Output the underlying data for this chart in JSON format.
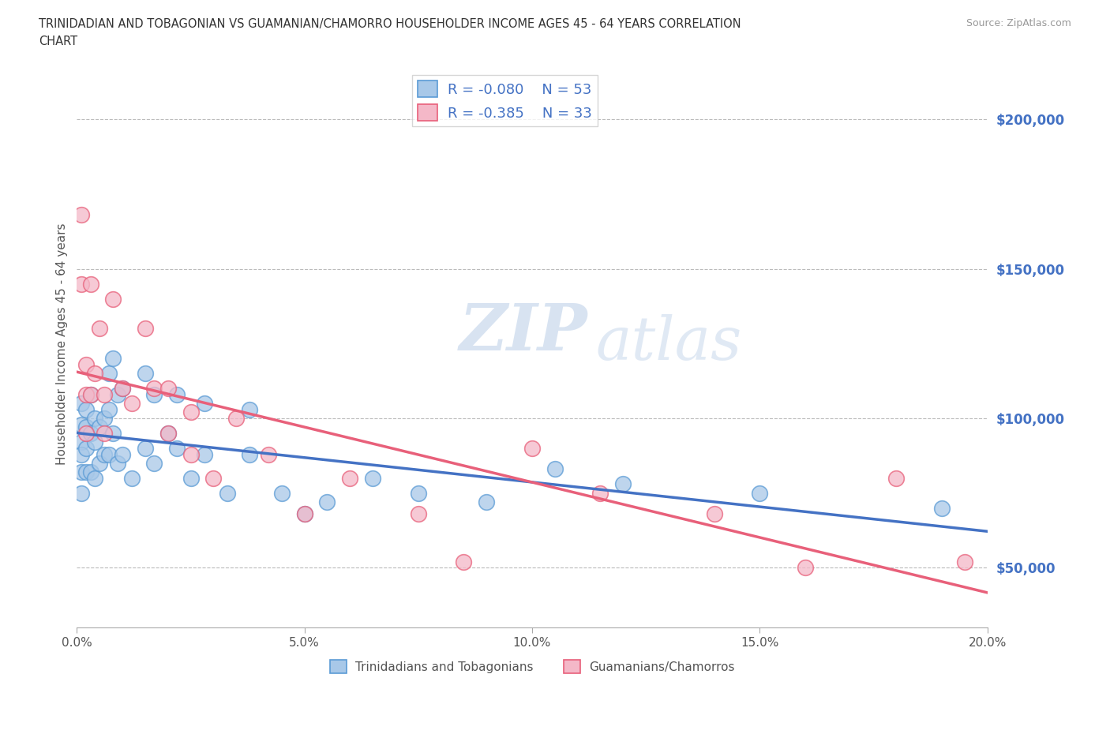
{
  "title_line1": "TRINIDADIAN AND TOBAGONIAN VS GUAMANIAN/CHAMORRO HOUSEHOLDER INCOME AGES 45 - 64 YEARS CORRELATION",
  "title_line2": "CHART",
  "source": "Source: ZipAtlas.com",
  "ylabel": "Householder Income Ages 45 - 64 years",
  "watermark1": "ZIP",
  "watermark2": "atlas",
  "xlim": [
    0.0,
    0.2
  ],
  "ylim": [
    30000,
    220000
  ],
  "xticks": [
    0.0,
    0.05,
    0.1,
    0.15,
    0.2
  ],
  "xticklabels": [
    "0.0%",
    "5.0%",
    "10.0%",
    "15.0%",
    "20.0%"
  ],
  "yticks": [
    50000,
    100000,
    150000,
    200000
  ],
  "yticklabels": [
    "$50,000",
    "$100,000",
    "$150,000",
    "$200,000"
  ],
  "blue_fill": "#A8C8E8",
  "blue_edge": "#5B9BD5",
  "pink_fill": "#F4B8C8",
  "pink_edge": "#E8607A",
  "blue_line_color": "#4472C4",
  "pink_line_color": "#E8607A",
  "R_blue": -0.08,
  "N_blue": 53,
  "R_pink": -0.385,
  "N_pink": 33,
  "legend_label_blue": "Trinidadians and Tobagonians",
  "legend_label_pink": "Guamanians/Chamorros",
  "blue_scatter_x": [
    0.001,
    0.001,
    0.001,
    0.001,
    0.001,
    0.001,
    0.002,
    0.002,
    0.002,
    0.002,
    0.003,
    0.003,
    0.003,
    0.004,
    0.004,
    0.004,
    0.005,
    0.005,
    0.006,
    0.006,
    0.007,
    0.007,
    0.007,
    0.008,
    0.008,
    0.009,
    0.009,
    0.01,
    0.01,
    0.012,
    0.015,
    0.015,
    0.017,
    0.017,
    0.02,
    0.022,
    0.022,
    0.025,
    0.028,
    0.028,
    0.033,
    0.038,
    0.038,
    0.045,
    0.05,
    0.055,
    0.065,
    0.075,
    0.09,
    0.105,
    0.12,
    0.15,
    0.19
  ],
  "blue_scatter_y": [
    105000,
    98000,
    92000,
    88000,
    82000,
    75000,
    103000,
    97000,
    90000,
    82000,
    108000,
    95000,
    82000,
    100000,
    92000,
    80000,
    97000,
    85000,
    100000,
    88000,
    115000,
    103000,
    88000,
    120000,
    95000,
    108000,
    85000,
    110000,
    88000,
    80000,
    115000,
    90000,
    108000,
    85000,
    95000,
    108000,
    90000,
    80000,
    105000,
    88000,
    75000,
    103000,
    88000,
    75000,
    68000,
    72000,
    80000,
    75000,
    72000,
    83000,
    78000,
    75000,
    70000
  ],
  "pink_scatter_x": [
    0.001,
    0.001,
    0.002,
    0.002,
    0.002,
    0.003,
    0.003,
    0.004,
    0.005,
    0.006,
    0.006,
    0.008,
    0.01,
    0.012,
    0.015,
    0.017,
    0.02,
    0.02,
    0.025,
    0.025,
    0.03,
    0.035,
    0.042,
    0.05,
    0.06,
    0.075,
    0.085,
    0.1,
    0.115,
    0.14,
    0.16,
    0.18,
    0.195
  ],
  "pink_scatter_y": [
    168000,
    145000,
    118000,
    108000,
    95000,
    145000,
    108000,
    115000,
    130000,
    108000,
    95000,
    140000,
    110000,
    105000,
    130000,
    110000,
    110000,
    95000,
    102000,
    88000,
    80000,
    100000,
    88000,
    68000,
    80000,
    68000,
    52000,
    90000,
    75000,
    68000,
    50000,
    80000,
    52000
  ]
}
